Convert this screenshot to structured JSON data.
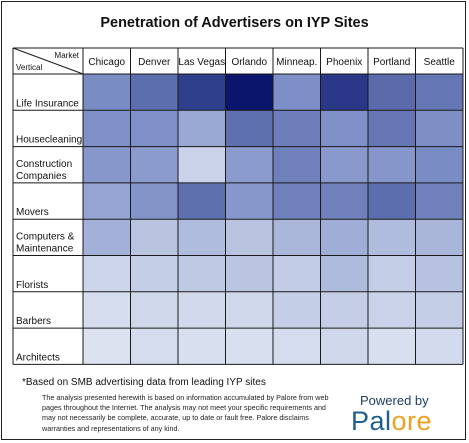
{
  "title": "Penetration of Advertisers on IYP Sites",
  "chart_data": {
    "type": "heatmap",
    "title": "Penetration of Advertisers on IYP Sites",
    "xlabel": "Market",
    "ylabel": "Vertical",
    "columns": [
      "Chicago",
      "Denver",
      "Las Vegas",
      "Orlando",
      "Minneap.",
      "Phoenix",
      "Portland",
      "Seattle"
    ],
    "rows": [
      {
        "label": [
          "Life Insurance"
        ],
        "colors": [
          "#7a8cc4",
          "#5d6eae",
          "#2f3f8c",
          "#0b156b",
          "#7d8fc6",
          "#2b3888",
          "#5a6aab",
          "#6476b3"
        ]
      },
      {
        "label": [
          "Housecleaning"
        ],
        "colors": [
          "#7e90c7",
          "#7e90c7",
          "#9aa9d4",
          "#5f70af",
          "#6d7eba",
          "#7e90c7",
          "#6676b4",
          "#7e8fc6"
        ]
      },
      {
        "label": [
          "Construction",
          "Companies"
        ],
        "colors": [
          "#8797cb",
          "#8b9bcd",
          "#c9d2e8",
          "#8b9bcd",
          "#6f80bb",
          "#8999cc",
          "#8696ca",
          "#7a8cc4"
        ]
      },
      {
        "label": [
          "Movers"
        ],
        "colors": [
          "#95a4d2",
          "#8394c9",
          "#5f70af",
          "#8797cb",
          "#6f80bb",
          "#6f80bb",
          "#5d6eae",
          "#6f80bb"
        ]
      },
      {
        "label": [
          "Computers &",
          "Maintenance"
        ],
        "colors": [
          "#a3b1d8",
          "#b8c3e0",
          "#b0bcdd",
          "#b8c3e0",
          "#aab7db",
          "#9fadd7",
          "#b0bcdd",
          "#a9b6da"
        ]
      },
      {
        "label": [
          "Florists"
        ],
        "colors": [
          "#ccd5ea",
          "#c4cee6",
          "#bec9e4",
          "#bac5e2",
          "#c2cce6",
          "#afbbdc",
          "#c3cde6",
          "#b7c2e0"
        ]
      },
      {
        "label": [
          "Barbers"
        ],
        "colors": [
          "#d5dcee",
          "#cfd7eb",
          "#d2d9ec",
          "#cfd7eb",
          "#c4cee6",
          "#c4cee6",
          "#c9d2e8",
          "#c4cee6"
        ]
      },
      {
        "label": [
          "Architects"
        ],
        "colors": [
          "#dce2f0",
          "#d5dcee",
          "#d8dfef",
          "#d8dfef",
          "#d5dcee",
          "#cfd7eb",
          "#d8dfef",
          "#d3daed"
        ]
      }
    ],
    "legend": "none",
    "grid": true
  },
  "footnote": "*Based on SMB advertising data from leading IYP sites",
  "disclaimer": "The analysis presented herewith is based on information accumulated by Palore from web pages throughout the Internet. The analysis may not meet your specific requirements and may not necessarily be complete, accurate, up to date or fault free. Palore disclaims warranties and representations of any kind.",
  "branding": {
    "powered_by": "Powered by",
    "name": "Palore"
  }
}
